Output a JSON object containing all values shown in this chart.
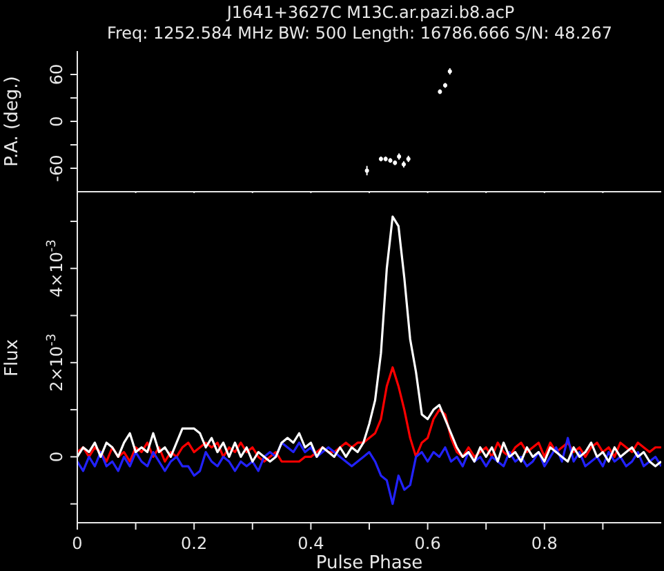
{
  "chart_data": [
    {
      "type": "scatter",
      "title": "J1641+3627C M13C.ar.pazi.b8.acP",
      "subtitle": "Freq: 1252.584 MHz BW: 500 Length: 16786.666 S/N: 48.267",
      "ylabel": "P.A. (deg.)",
      "marker": "circle",
      "tick_labels": "y",
      "xlim": [
        0,
        1
      ],
      "xticks": [
        0,
        {
          "value": 0.1,
          "label": null
        },
        0.2,
        {
          "value": 0.3,
          "label": null
        },
        0.4,
        {
          "value": 0.5,
          "label": null
        },
        0.6,
        {
          "value": 0.7,
          "label": null
        },
        0.8,
        {
          "value": 0.9,
          "label": null
        }
      ],
      "ylim": [
        -90,
        90
      ],
      "yticks": [
        -60,
        {
          "value": -30,
          "label": null
        },
        0,
        {
          "value": 30,
          "label": null
        },
        60
      ],
      "x": [
        0.496,
        0.52,
        0.528,
        0.536,
        0.544,
        0.551,
        0.559,
        0.567,
        0.621,
        0.63,
        0.638
      ],
      "series": [
        {
          "color": "#ffffff",
          "values": [
            -63,
            -48,
            -48,
            -50,
            -53,
            -45,
            -55,
            -48,
            38,
            46,
            64
          ],
          "errors": [
            6,
            3,
            3,
            3,
            3,
            4,
            4,
            4,
            3,
            3,
            4
          ]
        }
      ]
    },
    {
      "type": "line",
      "xlabel": "Pulse Phase",
      "ylabel": "Flux",
      "xlim": [
        0,
        1
      ],
      "xticks": [
        0,
        {
          "value": 0.1,
          "label": null
        },
        0.2,
        {
          "value": 0.3,
          "label": null
        },
        0.4,
        {
          "value": 0.5,
          "label": null
        },
        0.6,
        {
          "value": 0.7,
          "label": null
        },
        0.8,
        {
          "value": 0.9,
          "label": null
        }
      ],
      "ylim": [
        -0.0014,
        0.0056
      ],
      "yticks": [
        {
          "value": -0.001,
          "label": null
        },
        0,
        {
          "value": 0.001,
          "label": null
        },
        {
          "value": 0.002,
          "label": "2×10$^{-3}$"
        },
        {
          "value": 0.003,
          "label": null
        },
        {
          "value": 0.004,
          "label": "4×10$^{-3}$"
        },
        {
          "value": 0.005,
          "label": null
        }
      ],
      "x": [
        0,
        0.01,
        0.02,
        0.03,
        0.04,
        0.05,
        0.06,
        0.07,
        0.08,
        0.09,
        0.1,
        0.11,
        0.12,
        0.13,
        0.14,
        0.15,
        0.16,
        0.17,
        0.18,
        0.19,
        0.2,
        0.21,
        0.22,
        0.23,
        0.24,
        0.25,
        0.26,
        0.27,
        0.28,
        0.29,
        0.3,
        0.31,
        0.32,
        0.33,
        0.34,
        0.35,
        0.36,
        0.37,
        0.38,
        0.39,
        0.4,
        0.41,
        0.42,
        0.43,
        0.44,
        0.45,
        0.46,
        0.47,
        0.48,
        0.49,
        0.5,
        0.51,
        0.52,
        0.53,
        0.54,
        0.55,
        0.56,
        0.57,
        0.58,
        0.59,
        0.6,
        0.61,
        0.62,
        0.63,
        0.64,
        0.65,
        0.66,
        0.67,
        0.68,
        0.69,
        0.7,
        0.71,
        0.72,
        0.73,
        0.74,
        0.75,
        0.76,
        0.77,
        0.78,
        0.79,
        0.8,
        0.81,
        0.82,
        0.83,
        0.84,
        0.85,
        0.86,
        0.87,
        0.88,
        0.89,
        0.9,
        0.91,
        0.92,
        0.93,
        0.94,
        0.95,
        0.96,
        0.97,
        0.98,
        0.99,
        1
      ],
      "series": [
        {
          "color": "#ff0000",
          "values": [
            0.0001,
            0.0002,
            0.0,
            0.0002,
            0.0001,
            -0.0001,
            0.0002,
            0.0,
            0.0001,
            -0.0001,
            0.0002,
            0.0001,
            0.0003,
            0.0,
            0.0002,
            -0.0001,
            0.0001,
            0.0,
            0.0002,
            0.0003,
            0.0001,
            0.0002,
            0.0003,
            0.0002,
            0.0003,
            0.0,
            0.0002,
            0.0001,
            0.0003,
            0.0001,
            0.0002,
            0.0,
            -0.0001,
            0.0,
            0.0001,
            -0.0001,
            -0.0001,
            -0.0001,
            -0.0001,
            0.0,
            0.0,
            0.0001,
            0.0002,
            0.0001,
            0.0001,
            0.0002,
            0.0003,
            0.0002,
            0.0003,
            0.0003,
            0.0004,
            0.0005,
            0.0008,
            0.0015,
            0.0019,
            0.0015,
            0.001,
            0.0004,
            0.0,
            0.0003,
            0.0004,
            0.0008,
            0.001,
            0.0009,
            0.0004,
            0.0001,
            0.0,
            0.0002,
            0.0,
            0.0001,
            0.0002,
            0.0,
            0.0003,
            0.0001,
            0.0,
            0.0002,
            0.0003,
            0.0001,
            0.0002,
            0.0003,
            0.0,
            0.0003,
            0.0001,
            0.0002,
            0.0003,
            0.0001,
            0.0002,
            0.0,
            0.0002,
            0.0003,
            0.0001,
            0.0002,
            0.0,
            0.0003,
            0.0002,
            0.0001,
            0.0003,
            0.0002,
            0.0001,
            0.0002,
            0.0002
          ]
        },
        {
          "color": "#2222ff",
          "values": [
            -0.0001,
            -0.0003,
            0.0,
            -0.0002,
            0.0001,
            -0.0002,
            -0.0001,
            -0.0003,
            0.0,
            -0.0002,
            0.0001,
            -0.0001,
            -0.0002,
            0.0001,
            -0.0001,
            -0.0003,
            -0.0001,
            0.0,
            -0.0002,
            -0.0002,
            -0.0004,
            -0.0003,
            0.0001,
            -0.0001,
            -0.0002,
            0.0,
            -0.0001,
            -0.0003,
            -0.0001,
            -0.0002,
            -0.0001,
            -0.0003,
            0.0,
            0.0001,
            0.0,
            0.0003,
            0.0002,
            0.0001,
            0.0003,
            0.0001,
            0.0002,
            0.0,
            0.0001,
            0.0002,
            0.0001,
            0.0,
            -0.0001,
            -0.0002,
            -0.0001,
            0.0,
            0.0001,
            -0.0001,
            -0.0004,
            -0.0005,
            -0.001,
            -0.0004,
            -0.0007,
            -0.0006,
            0.0,
            0.0001,
            -0.0001,
            0.0001,
            0.0,
            0.0002,
            -0.0001,
            0.0,
            -0.0002,
            0.0001,
            -0.0001,
            0.0,
            -0.0002,
            0.0,
            -0.0001,
            -0.0002,
            0.0001,
            -0.0001,
            0.0,
            -0.0002,
            -0.0001,
            0.0001,
            -0.0002,
            0.0,
            0.0002,
            -0.0001,
            0.0004,
            -0.0001,
            0.0001,
            -0.0002,
            -0.0001,
            0.0,
            -0.0002,
            0.0001,
            -0.0001,
            0.0,
            -0.0002,
            -0.0001,
            0.0001,
            -0.0002,
            -0.0001,
            0.0,
            -0.0002
          ]
        },
        {
          "color": "#ffffff",
          "values": [
            0.0,
            0.0002,
            0.0001,
            0.0003,
            0.0,
            0.0003,
            0.0002,
            0.0,
            0.0003,
            0.0005,
            0.0001,
            0.0002,
            0.0001,
            0.0005,
            0.0001,
            0.0002,
            0.0,
            0.0003,
            0.0006,
            0.0006,
            0.0006,
            0.0005,
            0.0002,
            0.0004,
            0.0001,
            0.0003,
            0.0,
            0.0003,
            0.0,
            0.0002,
            -0.0001,
            0.0001,
            0.0,
            -0.0001,
            0.0,
            0.0003,
            0.0004,
            0.0003,
            0.0005,
            0.0002,
            0.0003,
            0.0,
            0.0002,
            0.0001,
            0.0,
            0.0002,
            0.0,
            0.0002,
            0.0001,
            0.0003,
            0.0007,
            0.0012,
            0.0022,
            0.004,
            0.0051,
            0.0049,
            0.0038,
            0.0025,
            0.0018,
            0.0009,
            0.0008,
            0.001,
            0.0011,
            0.0008,
            0.0005,
            0.0002,
            0.0,
            0.0001,
            -0.0001,
            0.0002,
            0.0,
            0.0002,
            -0.0001,
            0.0003,
            0.0,
            0.0001,
            -0.0001,
            0.0002,
            0.0,
            0.0001,
            -0.0001,
            0.0002,
            0.0001,
            0.0,
            -0.0001,
            0.0002,
            0.0,
            0.0001,
            0.0003,
            0.0,
            0.0001,
            -0.0001,
            0.0002,
            0.0,
            0.0001,
            0.0002,
            0.0,
            0.0001,
            -0.0001,
            -0.0002,
            -0.0001
          ]
        }
      ]
    }
  ]
}
